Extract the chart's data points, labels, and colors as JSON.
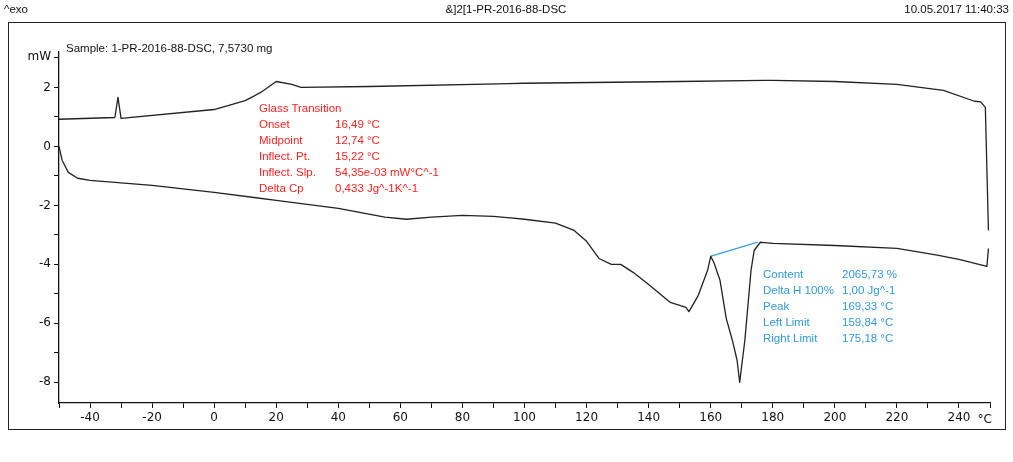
{
  "chart_data": {
    "type": "line",
    "title": "&]2[1-PR-2016-88-DSC",
    "subtitle": "Sample: 1-PR-2016-88-DSC, 7,5730 mg",
    "xlabel": "°C",
    "ylabel": "mW",
    "annotations": [
      "^exo",
      "10.05.2017 11:40:33",
      "Glass Transition",
      "Onset",
      "16,49 °C",
      "Midpoint",
      "12,74 °C",
      "Inflect. Pt.",
      "15,22 °C",
      "Inflect. Slp.",
      "54,35e-03 mW°C^-1",
      "Delta Cp",
      "0,433 Jg^-1K^-1",
      "Content",
      "2065,73 %",
      "Delta H 100%",
      "1,00 Jg^-1",
      "Peak",
      "169,33 °C",
      "Left Limit",
      "159,84 °C",
      "Right Limit",
      "175,18 °C"
    ],
    "series": [
      {
        "color": "#222222",
        "x": [
          -50,
          -32,
          -31,
          -30,
          0,
          10,
          15,
          20,
          25,
          28,
          50,
          100,
          150,
          180,
          200,
          220,
          235,
          245,
          247,
          248.5,
          249.5
        ],
        "values": [
          0.92,
          0.98,
          1.66,
          0.95,
          1.25,
          1.55,
          1.83,
          2.2,
          2.1,
          2.0,
          2.03,
          2.14,
          2.2,
          2.24,
          2.2,
          2.1,
          1.9,
          1.53,
          1.51,
          1.32,
          -2.85
        ]
      },
      {
        "color": "#222222",
        "x": [
          -50,
          -49,
          -47,
          -44,
          -40,
          -20,
          0,
          20,
          40,
          55,
          62,
          70,
          80,
          90,
          100,
          110,
          116,
          120,
          124,
          128,
          131,
          135,
          140,
          147,
          152,
          153,
          156,
          159,
          160,
          161,
          163,
          165,
          167,
          168.5,
          169.33,
          171,
          173,
          174,
          176,
          180,
          200,
          220,
          233,
          240,
          249,
          249.5
        ],
        "values": [
          0,
          -0.47,
          -0.88,
          -1.08,
          -1.15,
          -1.32,
          -1.56,
          -1.83,
          -2.1,
          -2.4,
          -2.47,
          -2.4,
          -2.34,
          -2.37,
          -2.47,
          -2.6,
          -2.85,
          -3.22,
          -3.8,
          -4.0,
          -4.0,
          -4.27,
          -4.68,
          -5.29,
          -5.46,
          -5.6,
          -5.05,
          -4.2,
          -3.73,
          -3.93,
          -4.54,
          -5.83,
          -6.58,
          -7.25,
          -8.0,
          -6.58,
          -4.2,
          -3.53,
          -3.25,
          -3.29,
          -3.36,
          -3.46,
          -3.69,
          -3.83,
          -4.07,
          -3.46
        ]
      },
      {
        "color": "#3aa0dc",
        "x": [
          159.84,
          175.18
        ],
        "values": [
          -3.73,
          -3.25
        ]
      }
    ],
    "xlim": [
      -50,
      250
    ],
    "ylim": [
      -8.7,
      3.2
    ],
    "xticks": [
      {
        "value": -50,
        "label": null
      },
      -40,
      {
        "value": -30,
        "label": null
      },
      -20,
      {
        "value": -10,
        "label": null
      },
      0,
      {
        "value": 10,
        "label": null
      },
      20,
      {
        "value": 30,
        "label": null
      },
      40,
      {
        "value": 50,
        "label": null
      },
      60,
      {
        "value": 70,
        "label": null
      },
      80,
      {
        "value": 90,
        "label": null
      },
      100,
      {
        "value": 110,
        "label": null
      },
      120,
      {
        "value": 130,
        "label": null
      },
      140,
      {
        "value": 150,
        "label": null
      },
      160,
      {
        "value": 170,
        "label": null
      },
      180,
      {
        "value": 190,
        "label": null
      },
      200,
      {
        "value": 210,
        "label": null
      },
      220,
      {
        "value": 230,
        "label": null
      },
      240,
      {
        "value": 250,
        "label": null
      }
    ],
    "yticks": [
      -8,
      {
        "value": -7,
        "label": null
      },
      -6,
      {
        "value": -5,
        "label": null
      },
      -4,
      {
        "value": -3,
        "label": null
      },
      -2,
      {
        "value": -1,
        "label": null
      },
      0,
      {
        "value": 1,
        "label": null
      },
      2,
      {
        "value": 3,
        "label": null
      }
    ],
    "grid": false,
    "legend": false,
    "marker": "none",
    "line_style": "solid"
  }
}
